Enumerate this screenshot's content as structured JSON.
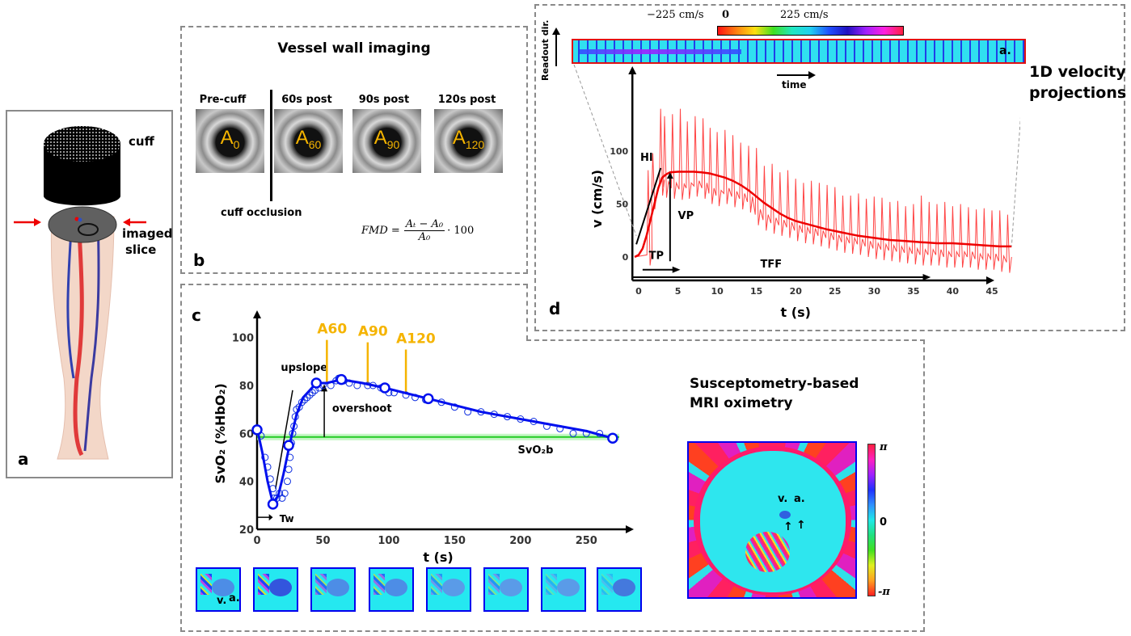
{
  "panel_a": {
    "letter": "a",
    "cuff_label": "cuff",
    "slice_label_line1": "imaged",
    "slice_label_line2": "slice"
  },
  "panel_b": {
    "letter": "b",
    "title": "Vessel wall imaging",
    "images": [
      {
        "header": "Pre-cuff",
        "area": "A",
        "sub": "0"
      },
      {
        "header": "60s post",
        "area": "A",
        "sub": "60"
      },
      {
        "header": "90s post",
        "area": "A",
        "sub": "90"
      },
      {
        "header": "120s post",
        "area": "A",
        "sub": "120"
      }
    ],
    "occlusion_label": "cuff occlusion",
    "formula": {
      "lhs": "FMD =",
      "numerator": "Aₜ − A₀",
      "denominator": "A₀",
      "factor": "· 100"
    }
  },
  "panel_c": {
    "letter": "c",
    "title_line1": "Susceptometry-based",
    "title_line2": "MRI oximetry",
    "phase_colorbar": {
      "max": "π",
      "mid": "0",
      "min": "-π"
    },
    "map_labels": {
      "vein": "v.",
      "artery": "a."
    },
    "thumb_labels": {
      "vein": "v.",
      "artery": "a."
    }
  },
  "panel_d": {
    "letter": "d",
    "title_line1": "1D velocity",
    "title_line2": "projections",
    "readout_label": "Readout dir.",
    "time_label": "time",
    "strip_label": "a.",
    "colorbar": {
      "min": "−225 cm/s",
      "mid": "0",
      "max": "225 cm/s"
    }
  },
  "chart_data": [
    {
      "id": "svo2",
      "type": "scatter",
      "title": "",
      "xlabel": "t (s)",
      "ylabel": "SvO₂ (%HbO₂)",
      "xlim": [
        0,
        275
      ],
      "ylim": [
        20,
        110
      ],
      "xticks": [
        0,
        50,
        100,
        150,
        200,
        250
      ],
      "yticks": [
        20,
        40,
        60,
        80,
        100
      ],
      "baseline": {
        "label": "SvO2b",
        "value": 58.5
      },
      "annotations": {
        "upslope": "upslope",
        "overshoot": "overshoot",
        "tw": "Tw",
        "a60": "A60",
        "a90": "A90",
        "a120": "A120"
      },
      "fmd_markers_t": [
        53,
        84,
        113
      ],
      "fit_line": {
        "x": [
          0,
          4,
          8,
          12,
          16,
          20,
          25,
          30,
          35,
          40,
          45,
          53,
          64,
          80,
          97,
          130,
          170,
          210,
          250,
          270
        ],
        "y": [
          62,
          52,
          40,
          31,
          34,
          43,
          56,
          68,
          75,
          78,
          81,
          81,
          82.5,
          81,
          79,
          74.5,
          69,
          65,
          61,
          58
        ]
      },
      "samples": {
        "x": [
          0,
          3,
          6,
          8,
          10,
          12,
          13,
          15,
          17,
          19,
          21,
          23,
          24,
          25,
          26,
          27,
          28,
          29,
          30,
          32,
          34,
          36,
          38,
          40,
          42,
          44,
          47,
          50,
          56,
          60,
          62,
          66,
          70,
          76,
          84,
          88,
          94,
          100,
          104,
          113,
          120,
          128,
          140,
          150,
          160,
          170,
          180,
          190,
          200,
          210,
          220,
          230,
          240,
          250,
          260
        ],
        "y": [
          61,
          59,
          50,
          46,
          41,
          37,
          33,
          33,
          35,
          33,
          35,
          40,
          45,
          50,
          56,
          60,
          63,
          67,
          70,
          71,
          73,
          74,
          75,
          76,
          77,
          78,
          79,
          80,
          80,
          82,
          83,
          82,
          81,
          80,
          80,
          80,
          79,
          77,
          77,
          76,
          75,
          74,
          73,
          71,
          69,
          69,
          68,
          67,
          66,
          65,
          63,
          62,
          60,
          60,
          60
        ]
      },
      "key_points": {
        "x": [
          0,
          12,
          24,
          45,
          64,
          97,
          130,
          270
        ],
        "y": [
          61.5,
          30.5,
          55,
          81,
          82.5,
          79,
          74.5,
          58
        ]
      }
    },
    {
      "id": "velocity",
      "type": "line",
      "title": "",
      "xlabel": "t (s)",
      "ylabel": "v (cm/s)",
      "xlim": [
        -1,
        52
      ],
      "ylim": [
        -20,
        150
      ],
      "xticks": [
        0,
        5,
        10,
        15,
        20,
        25,
        30,
        35,
        40,
        45
      ],
      "yticks": [
        0,
        50,
        100
      ],
      "annotations": {
        "hi": "HI",
        "vp": "VP",
        "tp": "TP",
        "tff": "TFF"
      },
      "mean_series": {
        "x": [
          -0.5,
          0,
          0.5,
          1,
          1.5,
          2,
          2.5,
          3,
          3.5,
          4,
          5,
          6,
          7,
          8,
          9,
          10,
          11,
          12,
          13,
          14,
          15,
          16,
          17,
          18,
          19,
          20,
          22,
          24,
          26,
          28,
          30,
          32,
          34,
          36,
          38,
          40,
          42,
          44,
          46,
          47.5
        ],
        "y": [
          0,
          2,
          8,
          20,
          35,
          50,
          65,
          75,
          78,
          80,
          80.5,
          80.5,
          80.5,
          80,
          79,
          77,
          75,
          72,
          68,
          63,
          57,
          51,
          46,
          41,
          37,
          34,
          30,
          26,
          23,
          20,
          18,
          16,
          15,
          14,
          13,
          13,
          12,
          11,
          10,
          10
        ]
      },
      "pulsatile_peaks": [
        {
          "t": 1.2,
          "peak": 82,
          "trough": -8
        },
        {
          "t": 1.8,
          "peak": 98,
          "trough": 45
        },
        {
          "t": 2.8,
          "peak": 140,
          "trough": 58
        },
        {
          "t": 3.3,
          "peak": 133,
          "trough": 56
        },
        {
          "t": 4.3,
          "peak": 135,
          "trough": 55
        },
        {
          "t": 5.3,
          "peak": 140,
          "trough": 54
        },
        {
          "t": 6.2,
          "peak": 128,
          "trough": 55
        },
        {
          "t": 7.2,
          "peak": 133,
          "trough": 57
        },
        {
          "t": 8.2,
          "peak": 131,
          "trough": 55
        },
        {
          "t": 9.1,
          "peak": 122,
          "trough": 50
        },
        {
          "t": 10.0,
          "peak": 118,
          "trough": 48
        },
        {
          "t": 11.0,
          "peak": 120,
          "trough": 50
        },
        {
          "t": 12.0,
          "peak": 115,
          "trough": 47
        },
        {
          "t": 13.0,
          "peak": 108,
          "trough": 45
        },
        {
          "t": 14.0,
          "peak": 105,
          "trough": 42
        },
        {
          "t": 15.0,
          "peak": 103,
          "trough": 30
        },
        {
          "t": 16.0,
          "peak": 86,
          "trough": 25
        },
        {
          "t": 17.0,
          "peak": 88,
          "trough": 22
        },
        {
          "t": 18.0,
          "peak": 80,
          "trough": 20
        },
        {
          "t": 19.0,
          "peak": 82,
          "trough": 18
        },
        {
          "t": 20.0,
          "peak": 74,
          "trough": 15
        },
        {
          "t": 21.0,
          "peak": 70,
          "trough": 13
        },
        {
          "t": 22.0,
          "peak": 72,
          "trough": 12
        },
        {
          "t": 23.0,
          "peak": 70,
          "trough": 10
        },
        {
          "t": 24.0,
          "peak": 68,
          "trough": 8
        },
        {
          "t": 25.0,
          "peak": 66,
          "trough": 6
        },
        {
          "t": 26.0,
          "peak": 58,
          "trough": 4
        },
        {
          "t": 27.0,
          "peak": 58,
          "trough": 3
        },
        {
          "t": 28.0,
          "peak": 60,
          "trough": 2
        },
        {
          "t": 29.0,
          "peak": 55,
          "trough": 0
        },
        {
          "t": 30.0,
          "peak": 57,
          "trough": -2
        },
        {
          "t": 31.0,
          "peak": 56,
          "trough": -3
        },
        {
          "t": 32.0,
          "peak": 52,
          "trough": -4
        },
        {
          "t": 33.0,
          "peak": 53,
          "trough": -5
        },
        {
          "t": 34.0,
          "peak": 48,
          "trough": -6
        },
        {
          "t": 35.0,
          "peak": 50,
          "trough": -7
        },
        {
          "t": 36.0,
          "peak": 58,
          "trough": -8
        },
        {
          "t": 37.0,
          "peak": 52,
          "trough": -8
        },
        {
          "t": 38.0,
          "peak": 50,
          "trough": -8
        },
        {
          "t": 39.0,
          "peak": 52,
          "trough": -10
        },
        {
          "t": 40.0,
          "peak": 48,
          "trough": -10
        },
        {
          "t": 41.0,
          "peak": 50,
          "trough": -10
        },
        {
          "t": 42.0,
          "peak": 47,
          "trough": -10
        },
        {
          "t": 43.0,
          "peak": 45,
          "trough": -12
        },
        {
          "t": 44.0,
          "peak": 46,
          "trough": -12
        },
        {
          "t": 45.0,
          "peak": 44,
          "trough": -12
        },
        {
          "t": 46.0,
          "peak": 44,
          "trough": -14
        },
        {
          "t": 47.0,
          "peak": 40,
          "trough": -15
        }
      ]
    }
  ]
}
